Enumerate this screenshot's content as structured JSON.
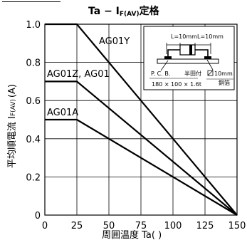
{
  "chart_data": {
    "type": "line",
    "title": "Ta − I",
    "title_sub": "F(AV)",
    "title_suffix": "定格",
    "xlabel": "周囲温度 Ta(  )",
    "ylabel_main": "平均順電流 I",
    "ylabel_sub": "F(AV)",
    "ylabel_unit": "(A)",
    "xlim": [
      0,
      150
    ],
    "ylim": [
      0,
      1.0
    ],
    "x_ticks": [
      0,
      25,
      50,
      75,
      100,
      125,
      150
    ],
    "y_ticks": [
      0,
      0.2,
      0.4,
      0.6,
      0.8,
      1.0
    ],
    "x_tick_labels": [
      "0",
      "25",
      "50",
      "75",
      "100",
      "125",
      "150"
    ],
    "y_tick_labels": [
      "0",
      "0.2",
      "0.4",
      "0.6",
      "0.8",
      "1.0"
    ],
    "grid": true,
    "series": [
      {
        "name": "AG01Y",
        "x": [
          0,
          25,
          150
        ],
        "y": [
          1.0,
          1.0,
          0
        ]
      },
      {
        "name": "AG01Z, AG01",
        "x": [
          0,
          25,
          150
        ],
        "y": [
          0.7,
          0.7,
          0
        ]
      },
      {
        "name": "AG01A",
        "x": [
          0,
          25,
          150
        ],
        "y": [
          0.5,
          0.5,
          0
        ]
      }
    ],
    "inset": {
      "dim_left": "L=10mm",
      "dim_right": "L=10mm",
      "pcb_line1": "P. C. B.",
      "solder": "半田付",
      "pcb_line2": "180 × 100 × 1.6t",
      "foil_line1": "10mm",
      "foil_line2": "銅箔"
    }
  }
}
